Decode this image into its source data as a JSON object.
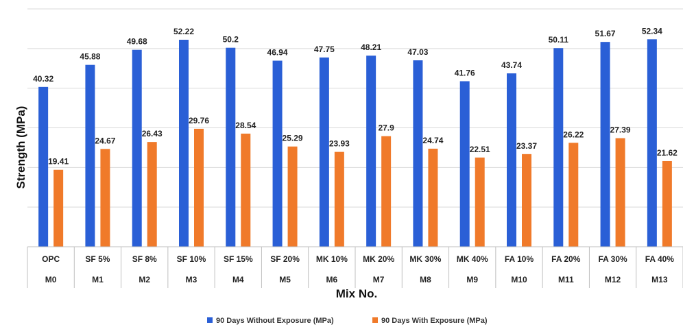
{
  "chart_data": {
    "type": "bar",
    "title": "",
    "xlabel": "Mix No.",
    "ylabel": "Strength (MPa)",
    "ylim": [
      0,
      60
    ],
    "grid": true,
    "legend_position": "bottom",
    "categories": [
      {
        "label": "OPC",
        "code": "M0"
      },
      {
        "label": "SF 5%",
        "code": "M1"
      },
      {
        "label": "SF 8%",
        "code": "M2"
      },
      {
        "label": "SF 10%",
        "code": "M3"
      },
      {
        "label": "SF 15%",
        "code": "M4"
      },
      {
        "label": "SF 20%",
        "code": "M5"
      },
      {
        "label": "MK 10%",
        "code": "M6"
      },
      {
        "label": "MK 20%",
        "code": "M7"
      },
      {
        "label": "MK 30%",
        "code": "M8"
      },
      {
        "label": "MK 40%",
        "code": "M9"
      },
      {
        "label": "FA 10%",
        "code": "M10"
      },
      {
        "label": "FA 20%",
        "code": "M11"
      },
      {
        "label": "FA 30%",
        "code": "M12"
      },
      {
        "label": "FA 40%",
        "code": "M13"
      }
    ],
    "series": [
      {
        "name": "90 Days Without Exposure (MPa)",
        "color": "#2a5fd6",
        "values": [
          40.32,
          45.88,
          49.68,
          52.22,
          50.2,
          46.94,
          47.75,
          48.21,
          47.03,
          41.76,
          43.74,
          50.11,
          51.67,
          52.34
        ],
        "labels": [
          "40.32",
          "45.88",
          "49.68",
          "52.22",
          "50.2",
          "46.94",
          "47.75",
          "48.21",
          "47.03",
          "41.76",
          "43.74",
          "50.11",
          "51.67",
          "52.34"
        ]
      },
      {
        "name": "90 Days With Exposure (MPa)",
        "color": "#f07a2a",
        "values": [
          19.41,
          24.67,
          26.43,
          29.76,
          28.54,
          25.29,
          23.93,
          27.9,
          24.74,
          22.51,
          23.37,
          26.22,
          27.39,
          21.62
        ],
        "labels": [
          "19.41",
          "24.67",
          "26.43",
          "29.76",
          "28.54",
          "25.29",
          "23.93",
          "27.9",
          "24.74",
          "22.51",
          "23.37",
          "26.22",
          "27.39",
          "21.62"
        ]
      }
    ]
  }
}
